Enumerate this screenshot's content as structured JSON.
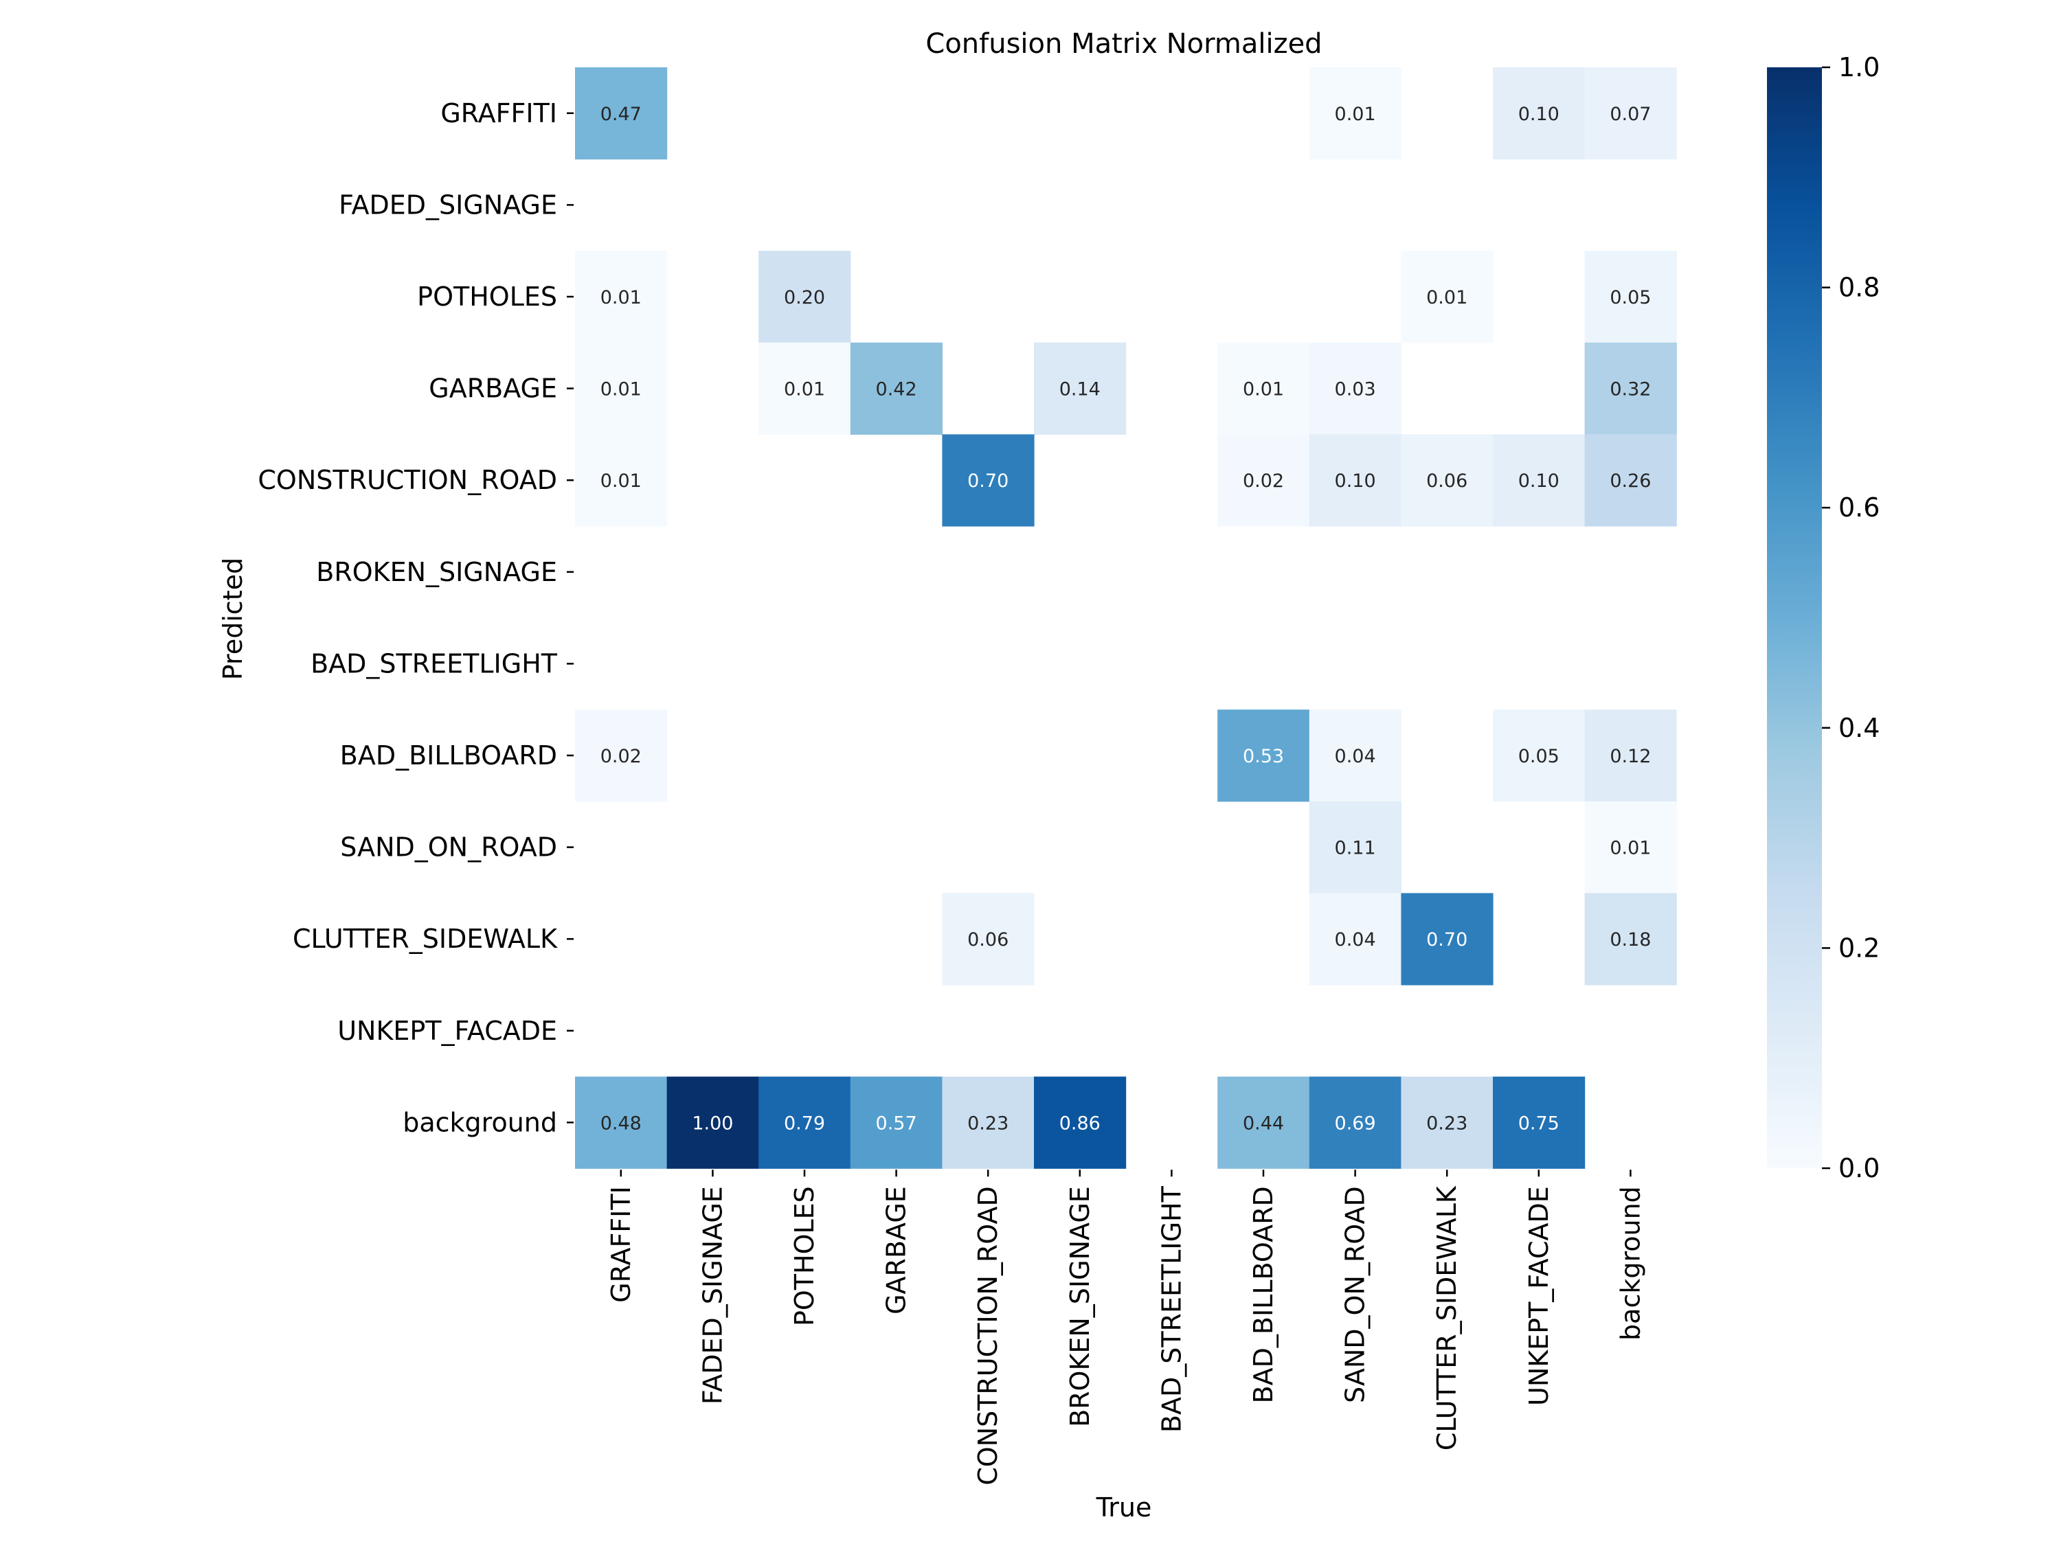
{
  "chart_data": {
    "type": "heatmap",
    "title": "Confusion Matrix Normalized",
    "xlabel": "True",
    "ylabel": "Predicted",
    "x_categories": [
      "GRAFFITI",
      "FADED_SIGNAGE",
      "POTHOLES",
      "GARBAGE",
      "CONSTRUCTION_ROAD",
      "BROKEN_SIGNAGE",
      "BAD_STREETLIGHT",
      "BAD_BILLBOARD",
      "SAND_ON_ROAD",
      "CLUTTER_SIDEWALK",
      "UNKEPT_FACADE",
      "background"
    ],
    "y_categories": [
      "GRAFFITI",
      "FADED_SIGNAGE",
      "POTHOLES",
      "GARBAGE",
      "CONSTRUCTION_ROAD",
      "BROKEN_SIGNAGE",
      "BAD_STREETLIGHT",
      "BAD_BILLBOARD",
      "SAND_ON_ROAD",
      "CLUTTER_SIDEWALK",
      "UNKEPT_FACADE",
      "background"
    ],
    "values": [
      [
        0.47,
        null,
        null,
        null,
        null,
        null,
        null,
        null,
        0.01,
        null,
        0.1,
        0.07
      ],
      [
        null,
        null,
        null,
        null,
        null,
        null,
        null,
        null,
        null,
        null,
        null,
        null
      ],
      [
        0.01,
        null,
        0.2,
        null,
        null,
        null,
        null,
        null,
        null,
        0.01,
        null,
        0.05
      ],
      [
        0.01,
        null,
        0.01,
        0.42,
        null,
        0.14,
        null,
        0.01,
        0.03,
        null,
        null,
        0.32
      ],
      [
        0.01,
        null,
        null,
        null,
        0.7,
        null,
        null,
        0.02,
        0.1,
        0.06,
        0.1,
        0.26
      ],
      [
        null,
        null,
        null,
        null,
        null,
        null,
        null,
        null,
        null,
        null,
        null,
        null
      ],
      [
        null,
        null,
        null,
        null,
        null,
        null,
        null,
        null,
        null,
        null,
        null,
        null
      ],
      [
        0.02,
        null,
        null,
        null,
        null,
        null,
        null,
        0.53,
        0.04,
        null,
        0.05,
        0.12
      ],
      [
        null,
        null,
        null,
        null,
        null,
        null,
        null,
        null,
        0.11,
        null,
        null,
        0.01
      ],
      [
        null,
        null,
        null,
        null,
        0.06,
        null,
        null,
        null,
        0.04,
        0.7,
        null,
        0.18
      ],
      [
        null,
        null,
        null,
        null,
        null,
        null,
        null,
        null,
        null,
        null,
        null,
        null
      ],
      [
        0.48,
        1.0,
        0.79,
        0.57,
        0.23,
        0.86,
        null,
        0.44,
        0.69,
        0.23,
        0.75,
        null
      ]
    ],
    "colorbar": {
      "range": [
        0.0,
        1.0
      ],
      "ticks": [
        "0.0",
        "0.2",
        "0.4",
        "0.6",
        "0.8",
        "1.0"
      ],
      "colormap": "Blues",
      "low_color": "#f7fbff",
      "high_color": "#08306b"
    }
  }
}
